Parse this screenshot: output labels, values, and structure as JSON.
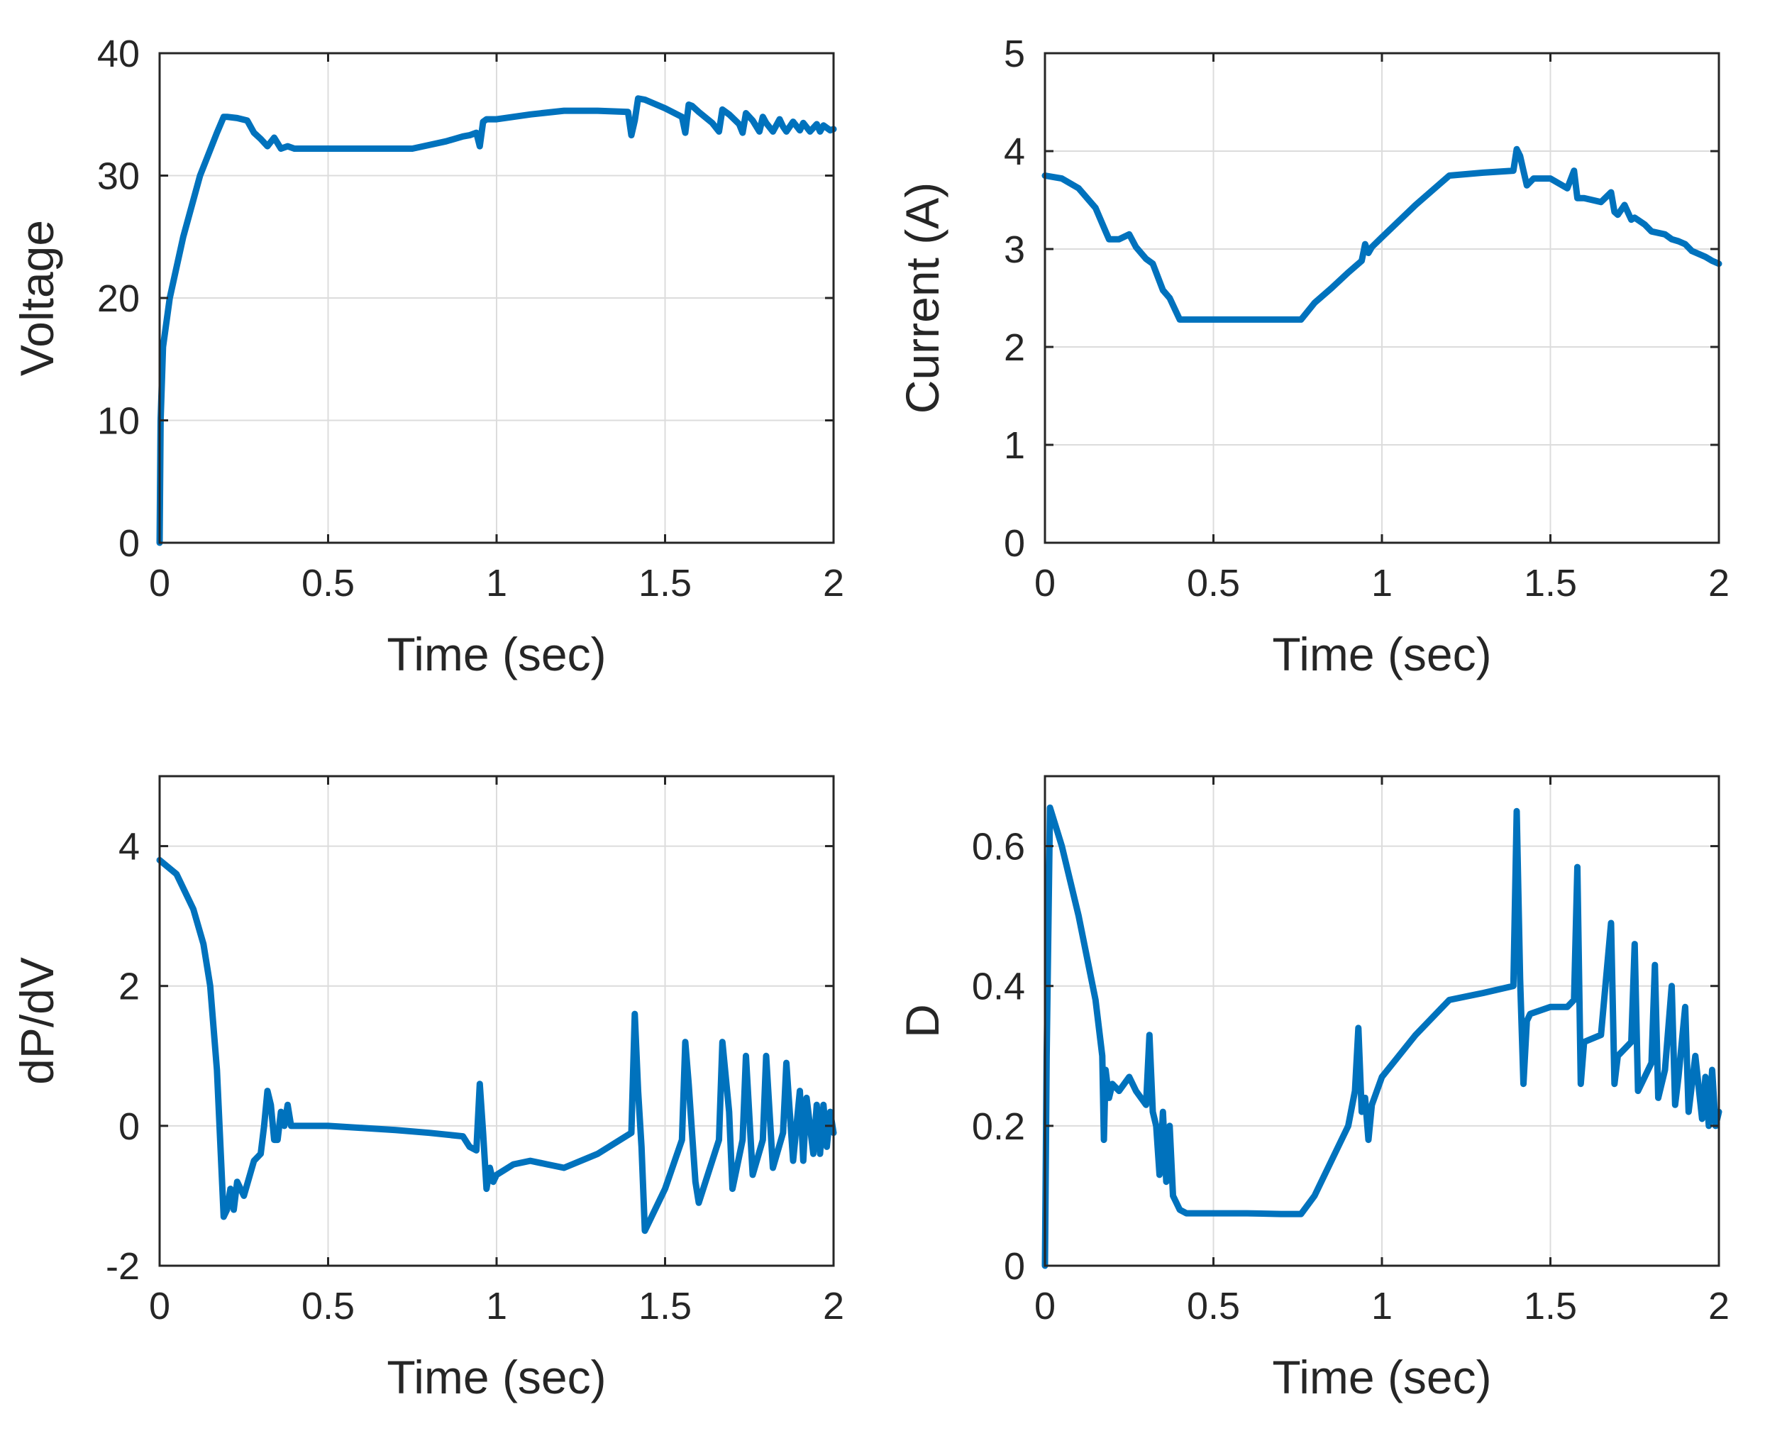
{
  "colors": {
    "series": "#0072BD",
    "axes": "#262626",
    "grid": "#dcdcdc",
    "background": "#ffffff"
  },
  "chart_data": [
    {
      "type": "line",
      "id": "voltage",
      "title": "",
      "xlabel": "Time (sec)",
      "ylabel": "Voltage",
      "xlim": [
        0,
        2
      ],
      "ylim": [
        0,
        40
      ],
      "xticks": [
        0,
        0.5,
        1,
        1.5,
        2
      ],
      "xtick_labels": [
        "0",
        "0.5",
        "1",
        "1.5",
        "2"
      ],
      "yticks": [
        0,
        10,
        20,
        30,
        40
      ],
      "ytick_labels": [
        "0",
        "10",
        "20",
        "30",
        "40"
      ],
      "grid": true,
      "series": [
        {
          "name": "Voltage",
          "x": [
            0,
            0.003,
            0.01,
            0.03,
            0.07,
            0.12,
            0.17,
            0.19,
            0.2,
            0.23,
            0.26,
            0.28,
            0.3,
            0.32,
            0.34,
            0.36,
            0.38,
            0.4,
            0.45,
            0.5,
            0.6,
            0.7,
            0.75,
            0.8,
            0.85,
            0.9,
            0.92,
            0.94,
            0.95,
            0.96,
            0.97,
            0.98,
            1.0,
            1.05,
            1.1,
            1.2,
            1.3,
            1.39,
            1.4,
            1.41,
            1.42,
            1.44,
            1.5,
            1.55,
            1.56,
            1.57,
            1.58,
            1.6,
            1.64,
            1.66,
            1.67,
            1.69,
            1.72,
            1.73,
            1.74,
            1.76,
            1.78,
            1.79,
            1.8,
            1.82,
            1.84,
            1.85,
            1.86,
            1.88,
            1.9,
            1.91,
            1.93,
            1.95,
            1.96,
            1.97,
            1.99,
            2.0
          ],
          "values": [
            0,
            10,
            16,
            20,
            25,
            30,
            33.5,
            34.8,
            34.8,
            34.7,
            34.5,
            33.5,
            33,
            32.4,
            33.1,
            32.2,
            32.4,
            32.2,
            32.2,
            32.2,
            32.2,
            32.2,
            32.2,
            32.5,
            32.8,
            33.2,
            33.3,
            33.5,
            32.4,
            34.4,
            34.6,
            34.6,
            34.6,
            34.8,
            35,
            35.3,
            35.3,
            35.2,
            33.3,
            34.5,
            36.3,
            36.2,
            35.5,
            34.8,
            33.5,
            35.8,
            35.7,
            35.2,
            34.3,
            33.6,
            35.4,
            35,
            34.2,
            33.5,
            35.1,
            34.5,
            33.6,
            34.8,
            34.3,
            33.6,
            34.6,
            34,
            33.6,
            34.4,
            33.7,
            34.3,
            33.6,
            34.2,
            33.6,
            34.1,
            33.7,
            33.8
          ]
        }
      ]
    },
    {
      "type": "line",
      "id": "current",
      "title": "",
      "xlabel": "Time (sec)",
      "ylabel": "Current (A)",
      "xlim": [
        0,
        2
      ],
      "ylim": [
        0,
        5
      ],
      "xticks": [
        0,
        0.5,
        1,
        1.5,
        2
      ],
      "xtick_labels": [
        "0",
        "0.5",
        "1",
        "1.5",
        "2"
      ],
      "yticks": [
        0,
        1,
        2,
        3,
        4,
        5
      ],
      "ytick_labels": [
        "0",
        "1",
        "2",
        "3",
        "4",
        "5"
      ],
      "grid": true,
      "series": [
        {
          "name": "Current",
          "x": [
            0,
            0.05,
            0.1,
            0.15,
            0.18,
            0.19,
            0.22,
            0.25,
            0.27,
            0.3,
            0.32,
            0.35,
            0.37,
            0.4,
            0.5,
            0.6,
            0.7,
            0.76,
            0.8,
            0.85,
            0.9,
            0.94,
            0.95,
            0.96,
            0.97,
            1.0,
            1.1,
            1.2,
            1.3,
            1.39,
            1.4,
            1.41,
            1.42,
            1.43,
            1.45,
            1.5,
            1.55,
            1.57,
            1.58,
            1.6,
            1.65,
            1.68,
            1.69,
            1.7,
            1.72,
            1.74,
            1.75,
            1.78,
            1.8,
            1.84,
            1.86,
            1.88,
            1.9,
            1.92,
            1.94,
            1.96,
            1.98,
            2.0
          ],
          "values": [
            3.75,
            3.72,
            3.62,
            3.42,
            3.18,
            3.1,
            3.1,
            3.15,
            3.02,
            2.9,
            2.85,
            2.58,
            2.5,
            2.28,
            2.28,
            2.28,
            2.28,
            2.28,
            2.45,
            2.6,
            2.76,
            2.88,
            3.05,
            2.96,
            3.02,
            3.12,
            3.45,
            3.75,
            3.78,
            3.8,
            4.02,
            3.95,
            3.8,
            3.65,
            3.72,
            3.72,
            3.62,
            3.8,
            3.52,
            3.52,
            3.48,
            3.58,
            3.38,
            3.35,
            3.45,
            3.3,
            3.32,
            3.25,
            3.18,
            3.15,
            3.1,
            3.08,
            3.05,
            2.98,
            2.95,
            2.92,
            2.88,
            2.85
          ]
        }
      ]
    },
    {
      "type": "line",
      "id": "dpdv",
      "title": "",
      "xlabel": "Time (sec)",
      "ylabel": "dP/dV",
      "xlim": [
        0,
        2
      ],
      "ylim": [
        -2,
        5
      ],
      "xticks": [
        0,
        0.5,
        1,
        1.5,
        2
      ],
      "xtick_labels": [
        "0",
        "0.5",
        "1",
        "1.5",
        "2"
      ],
      "yticks": [
        -2,
        0,
        2,
        4
      ],
      "ytick_labels": [
        "-2",
        "0",
        "2",
        "4"
      ],
      "grid": true,
      "series": [
        {
          "name": "dP/dV",
          "x": [
            0,
            0.05,
            0.1,
            0.13,
            0.15,
            0.17,
            0.19,
            0.2,
            0.21,
            0.22,
            0.23,
            0.25,
            0.28,
            0.3,
            0.31,
            0.32,
            0.33,
            0.34,
            0.35,
            0.36,
            0.37,
            0.38,
            0.39,
            0.4,
            0.45,
            0.5,
            0.6,
            0.7,
            0.8,
            0.9,
            0.92,
            0.94,
            0.95,
            0.96,
            0.97,
            0.98,
            0.99,
            1.0,
            1.05,
            1.1,
            1.15,
            1.2,
            1.3,
            1.4,
            1.41,
            1.42,
            1.43,
            1.44,
            1.5,
            1.55,
            1.56,
            1.57,
            1.58,
            1.59,
            1.6,
            1.64,
            1.66,
            1.67,
            1.69,
            1.7,
            1.73,
            1.74,
            1.76,
            1.79,
            1.8,
            1.82,
            1.85,
            1.86,
            1.88,
            1.9,
            1.91,
            1.92,
            1.94,
            1.95,
            1.96,
            1.97,
            1.98,
            1.99,
            2.0
          ],
          "values": [
            3.8,
            3.6,
            3.1,
            2.6,
            2,
            0.8,
            -1.3,
            -1.2,
            -0.9,
            -1.2,
            -0.8,
            -1,
            -0.5,
            -0.4,
            0,
            0.5,
            0.3,
            -0.2,
            -0.2,
            0.2,
            0,
            0.3,
            0,
            0,
            0,
            0,
            -0.03,
            -0.06,
            -0.1,
            -0.15,
            -0.3,
            -0.35,
            0.6,
            -0.1,
            -0.9,
            -0.6,
            -0.8,
            -0.7,
            -0.55,
            -0.5,
            -0.55,
            -0.6,
            -0.4,
            -0.1,
            1.6,
            0.5,
            -0.3,
            -1.5,
            -0.9,
            -0.2,
            1.2,
            0.6,
            -0.1,
            -0.8,
            -1.1,
            -0.5,
            -0.2,
            1.2,
            0.2,
            -0.9,
            -0.2,
            1,
            -0.7,
            -0.2,
            1,
            -0.6,
            -0.1,
            0.9,
            -0.5,
            0.5,
            -0.5,
            0.4,
            -0.4,
            0.3,
            -0.4,
            0.3,
            -0.3,
            0.2,
            -0.1
          ]
        }
      ]
    },
    {
      "type": "line",
      "id": "duty",
      "title": "",
      "xlabel": "Time (sec)",
      "ylabel": "D",
      "xlim": [
        0,
        2
      ],
      "ylim": [
        0,
        0.7
      ],
      "xticks": [
        0,
        0.5,
        1,
        1.5,
        2
      ],
      "xtick_labels": [
        "0",
        "0.5",
        "1",
        "1.5",
        "2"
      ],
      "yticks": [
        0,
        0.2,
        0.4,
        0.6
      ],
      "ytick_labels": [
        "0",
        "0.2",
        "0.4",
        "0.6"
      ],
      "grid": true,
      "series": [
        {
          "name": "D",
          "x": [
            0,
            0.005,
            0.015,
            0.05,
            0.1,
            0.15,
            0.17,
            0.175,
            0.18,
            0.19,
            0.2,
            0.22,
            0.25,
            0.27,
            0.3,
            0.31,
            0.32,
            0.33,
            0.34,
            0.35,
            0.36,
            0.37,
            0.38,
            0.39,
            0.4,
            0.42,
            0.45,
            0.5,
            0.6,
            0.7,
            0.76,
            0.8,
            0.85,
            0.9,
            0.92,
            0.93,
            0.94,
            0.95,
            0.96,
            0.97,
            1.0,
            1.1,
            1.2,
            1.3,
            1.39,
            1.4,
            1.41,
            1.42,
            1.43,
            1.44,
            1.5,
            1.55,
            1.57,
            1.58,
            1.59,
            1.6,
            1.65,
            1.68,
            1.69,
            1.7,
            1.74,
            1.75,
            1.76,
            1.8,
            1.81,
            1.82,
            1.84,
            1.86,
            1.87,
            1.88,
            1.9,
            1.91,
            1.93,
            1.95,
            1.96,
            1.97,
            1.98,
            1.99,
            2.0
          ],
          "values": [
            0,
            0.3,
            0.655,
            0.6,
            0.5,
            0.38,
            0.3,
            0.18,
            0.28,
            0.24,
            0.26,
            0.25,
            0.27,
            0.25,
            0.23,
            0.33,
            0.22,
            0.2,
            0.13,
            0.22,
            0.12,
            0.2,
            0.1,
            0.09,
            0.08,
            0.075,
            0.075,
            0.075,
            0.075,
            0.074,
            0.074,
            0.1,
            0.15,
            0.2,
            0.25,
            0.34,
            0.22,
            0.24,
            0.18,
            0.23,
            0.27,
            0.33,
            0.38,
            0.39,
            0.4,
            0.65,
            0.41,
            0.26,
            0.35,
            0.36,
            0.37,
            0.37,
            0.38,
            0.57,
            0.26,
            0.32,
            0.33,
            0.49,
            0.26,
            0.3,
            0.32,
            0.46,
            0.25,
            0.29,
            0.43,
            0.24,
            0.28,
            0.4,
            0.23,
            0.27,
            0.37,
            0.22,
            0.3,
            0.21,
            0.27,
            0.2,
            0.28,
            0.2,
            0.22
          ]
        }
      ]
    }
  ]
}
